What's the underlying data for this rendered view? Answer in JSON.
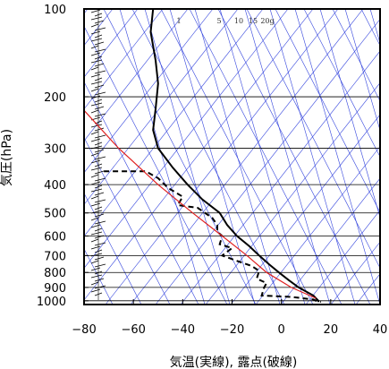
{
  "chart_data": {
    "type": "line",
    "chart_kind": "skew-T log-p",
    "xlabel": "気温(実線), 露点(破線)",
    "ylabel": "気圧(hPa)",
    "xlim": [
      -80,
      40
    ],
    "ylim": [
      1030,
      100
    ],
    "y_scale": "log",
    "x_ticks": [
      -80,
      -60,
      -40,
      -20,
      0,
      20,
      40
    ],
    "y_ticks": [
      100,
      200,
      300,
      400,
      500,
      600,
      700,
      800,
      900,
      1000
    ],
    "mixing_ratio_labels": [
      "1",
      "5",
      "10",
      "15",
      "20g"
    ],
    "colors": {
      "temperature": "#000000",
      "dewpoint": "#000000",
      "parcel": "#e02020",
      "background": "#3344dd",
      "grid": "#000000",
      "wind": "#000000"
    },
    "series": [
      {
        "name": "",
        "style": "solid",
        "points": [
          [
            -52,
            100
          ],
          [
            -53,
            120
          ],
          [
            -51,
            150
          ],
          [
            -50,
            180
          ],
          [
            -51,
            220
          ],
          [
            -52,
            260
          ],
          [
            -50,
            300
          ],
          [
            -44,
            350
          ],
          [
            -38,
            400
          ],
          [
            -32,
            450
          ],
          [
            -25,
            500
          ],
          [
            -22,
            550
          ],
          [
            -18,
            600
          ],
          [
            -13,
            650
          ],
          [
            -9,
            700
          ],
          [
            -5,
            750
          ],
          [
            -1,
            800
          ],
          [
            3,
            850
          ],
          [
            7,
            900
          ],
          [
            10,
            930
          ],
          [
            13,
            960
          ],
          [
            15,
            1000
          ],
          [
            15,
            1010
          ]
        ]
      },
      {
        "name": "",
        "style": "dashed",
        "points": [
          [
            -72,
            360
          ],
          [
            -55,
            360
          ],
          [
            -50,
            380
          ],
          [
            -46,
            410
          ],
          [
            -40,
            440
          ],
          [
            -42,
            470
          ],
          [
            -34,
            480
          ],
          [
            -28,
            520
          ],
          [
            -26,
            550
          ],
          [
            -26,
            580
          ],
          [
            -24,
            600
          ],
          [
            -25,
            640
          ],
          [
            -20,
            660
          ],
          [
            -24,
            700
          ],
          [
            -18,
            730
          ],
          [
            -12,
            760
          ],
          [
            -9,
            790
          ],
          [
            -10,
            840
          ],
          [
            -6,
            870
          ],
          [
            -7,
            900
          ],
          [
            -8,
            960
          ],
          [
            4,
            970
          ],
          [
            13,
            990
          ],
          [
            14,
            1000
          ],
          [
            16,
            1010
          ]
        ]
      },
      {
        "name": "",
        "style": "solid",
        "color": "#e02020",
        "points": [
          [
            -85,
            200
          ],
          [
            -66,
            300
          ],
          [
            -50,
            400
          ],
          [
            -36,
            500
          ],
          [
            -24,
            600
          ],
          [
            -14,
            700
          ],
          [
            -6,
            800
          ],
          [
            4,
            900
          ],
          [
            14,
            980
          ]
        ]
      }
    ],
    "wind_barbs": true
  }
}
